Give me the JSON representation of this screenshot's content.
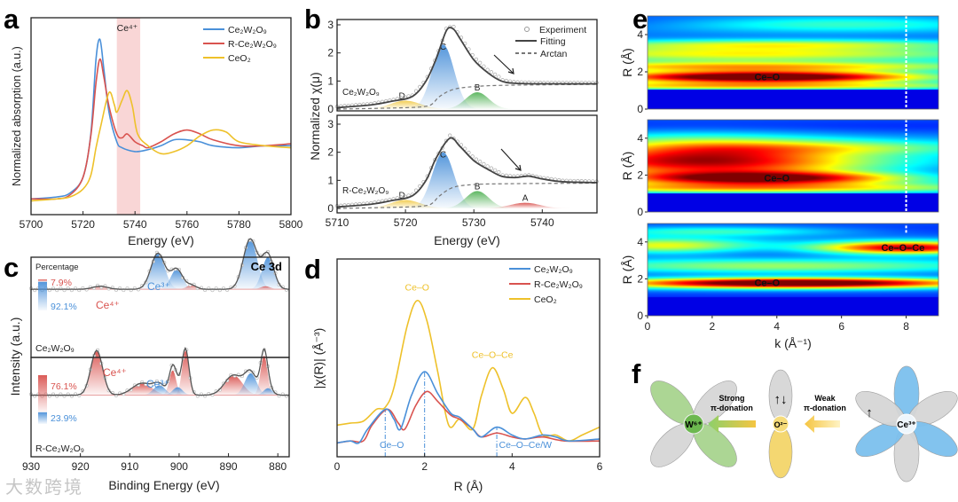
{
  "watermark": "大数跨境",
  "colors": {
    "blue": "#4a90d9",
    "red": "#d9534f",
    "yellow": "#eec12a",
    "green": "#4caf50",
    "gray": "#555555",
    "pink_band": "#f9d6d6"
  },
  "chart_data": [
    {
      "panel": "a",
      "type": "line",
      "xlabel": "Energy (eV)",
      "ylabel": "Normalized absorption (a.u.)",
      "xlim": [
        5700,
        5800
      ],
      "ylim": [
        0,
        1
      ],
      "xticks": [
        5700,
        5720,
        5740,
        5760,
        5780,
        5800
      ],
      "shaded_region": {
        "label": "Ce⁴⁺",
        "x": [
          5733,
          5742
        ]
      },
      "legend_position": "top-right",
      "series": [
        {
          "name": "Ce₂W₂O₉",
          "color": "#4a90d9",
          "x": [
            5700,
            5710,
            5715,
            5720,
            5723,
            5725,
            5726.5,
            5728,
            5730,
            5733,
            5735,
            5740,
            5745,
            5750,
            5755,
            5760,
            5765,
            5770,
            5780,
            5790,
            5800
          ],
          "y": [
            0.08,
            0.09,
            0.11,
            0.19,
            0.41,
            0.79,
            0.89,
            0.74,
            0.52,
            0.37,
            0.34,
            0.32,
            0.33,
            0.35,
            0.38,
            0.38,
            0.37,
            0.35,
            0.34,
            0.35,
            0.35
          ]
        },
        {
          "name": "R-Ce₂W₂O₉",
          "color": "#d9534f",
          "x": [
            5700,
            5710,
            5715,
            5720,
            5723,
            5725,
            5726.5,
            5728,
            5730,
            5733,
            5735,
            5737,
            5740,
            5743,
            5745,
            5750,
            5755,
            5760,
            5765,
            5770,
            5780,
            5790,
            5800
          ],
          "y": [
            0.08,
            0.08,
            0.1,
            0.19,
            0.4,
            0.67,
            0.79,
            0.7,
            0.55,
            0.41,
            0.39,
            0.41,
            0.37,
            0.35,
            0.34,
            0.37,
            0.41,
            0.43,
            0.41,
            0.38,
            0.35,
            0.35,
            0.36
          ]
        },
        {
          "name": "CeO₂",
          "color": "#eec12a",
          "x": [
            5700,
            5710,
            5715,
            5720,
            5723,
            5725,
            5727,
            5730,
            5732,
            5733,
            5735,
            5737,
            5739,
            5741,
            5745,
            5750,
            5755,
            5760,
            5765,
            5770,
            5775,
            5780,
            5790,
            5800
          ],
          "y": [
            0.07,
            0.08,
            0.09,
            0.13,
            0.2,
            0.34,
            0.46,
            0.62,
            0.56,
            0.52,
            0.58,
            0.63,
            0.55,
            0.41,
            0.35,
            0.31,
            0.32,
            0.35,
            0.4,
            0.43,
            0.42,
            0.37,
            0.35,
            0.34
          ]
        }
      ]
    },
    {
      "panel": "b",
      "type": "line",
      "xlabel": "Energy (eV)",
      "ylabel": "Normalized χ(μ)",
      "xlim": [
        5710,
        5748
      ],
      "ylim": [
        -0.06,
        3.2
      ],
      "xticks": [
        5710,
        5720,
        5730,
        5740
      ],
      "yticks": [
        0,
        1,
        2,
        3
      ],
      "legend": [
        "Experiment",
        "Fitting",
        "Arctan"
      ],
      "legend_position": "top-right",
      "subplots": [
        {
          "sample": "Ce₂W₂O₉",
          "fit": {
            "x": [
              5710,
              5715,
              5718,
              5721,
              5723,
              5724.5,
              5726,
              5727,
              5728,
              5730,
              5732,
              5734,
              5736,
              5740,
              5748
            ],
            "y": [
              0.05,
              0.15,
              0.28,
              0.45,
              1.0,
              1.8,
              2.8,
              2.85,
              2.5,
              1.75,
              1.3,
              1.0,
              0.92,
              0.9,
              0.9
            ]
          },
          "arctan": {
            "x": [
              5710,
              5720,
              5723,
              5724,
              5725,
              5727,
              5730,
              5735,
              5748
            ],
            "y": [
              0,
              0.05,
              0.1,
              0.2,
              0.45,
              0.7,
              0.8,
              0.85,
              0.88
            ]
          },
          "peaks": [
            {
              "label": "D",
              "center": 5720,
              "height": 0.3,
              "sigma": 2.2,
              "color": "#eec12a"
            },
            {
              "label": "C",
              "center": 5725.5,
              "height": 2.3,
              "sigma": 1.6,
              "color": "#4a90d9"
            },
            {
              "label": "B",
              "center": 5730.5,
              "height": 0.6,
              "sigma": 1.7,
              "color": "#4caf50"
            }
          ]
        },
        {
          "sample": "R-Ce₂W₂O₉",
          "fit": {
            "x": [
              5710,
              5715,
              5718,
              5721,
              5723,
              5724.5,
              5726.5,
              5728,
              5730,
              5732,
              5734,
              5736,
              5738,
              5740,
              5743,
              5748
            ],
            "y": [
              0.05,
              0.15,
              0.28,
              0.45,
              1.0,
              1.8,
              2.5,
              2.2,
              1.7,
              1.4,
              1.15,
              1.1,
              1.15,
              1.05,
              0.95,
              0.92
            ]
          },
          "arctan": {
            "x": [
              5710,
              5720,
              5723,
              5724,
              5725,
              5727,
              5730,
              5735,
              5748
            ],
            "y": [
              0,
              0.05,
              0.1,
              0.2,
              0.45,
              0.75,
              0.85,
              0.88,
              0.9
            ]
          },
          "peaks": [
            {
              "label": "D",
              "center": 5720,
              "height": 0.3,
              "sigma": 2.2,
              "color": "#eec12a"
            },
            {
              "label": "C",
              "center": 5725.5,
              "height": 2.0,
              "sigma": 1.6,
              "color": "#4a90d9"
            },
            {
              "label": "B",
              "center": 5730.5,
              "height": 0.62,
              "sigma": 1.7,
              "color": "#4caf50"
            },
            {
              "label": "A",
              "center": 5737.5,
              "height": 0.2,
              "sigma": 2.2,
              "color": "#d9534f"
            }
          ]
        }
      ]
    },
    {
      "panel": "c",
      "type": "area",
      "title": "Ce 3d",
      "xlabel": "Binding Energy (eV)",
      "ylabel": "Intensity (a.u.)",
      "xlim": [
        930,
        877.7
      ],
      "xticks": [
        930,
        920,
        910,
        900,
        890,
        880
      ],
      "percentage_label": "Percentage",
      "subplots": [
        {
          "sample": "Ce₂W₂O₉",
          "ce4_pct": "7.9%",
          "ce3_pct": "92.1%",
          "ce4_fraction": 0.079,
          "labels": {
            "ce3": "Ce³⁺",
            "ce4": "Ce⁴⁺"
          },
          "background": {
            "x": [
              930,
              920,
              910,
              905,
              900,
              895,
              890,
              885,
              880,
              877.7
            ],
            "y": [
              0.68,
              0.62,
              0.58,
              0.53,
              0.42,
              0.3,
              0.25,
              0.2,
              0.08,
              0.05
            ]
          },
          "peaks": [
            {
              "type": "Ce3+",
              "center": 904.3,
              "height": 0.36,
              "sigma": 1.4
            },
            {
              "type": "Ce3+",
              "center": 900.5,
              "height": 0.2,
              "sigma": 1.2
            },
            {
              "type": "Ce3+",
              "center": 885.6,
              "height": 0.5,
              "sigma": 1.4
            },
            {
              "type": "Ce3+",
              "center": 882,
              "height": 0.32,
              "sigma": 1.2
            },
            {
              "type": "Ce4+",
              "center": 916,
              "height": 0.03,
              "sigma": 1.5
            },
            {
              "type": "Ce4+",
              "center": 897.5,
              "height": 0.04,
              "sigma": 1.0
            },
            {
              "type": "Ce4+",
              "center": 882.5,
              "height": 0.03,
              "sigma": 1.0
            }
          ]
        },
        {
          "sample": "R-Ce₂W₂O₉",
          "ce4_pct": "76.1%",
          "ce3_pct": "23.9%",
          "ce4_fraction": 0.761,
          "labels": {
            "ce3": "Ce³⁺",
            "ce4": "Ce⁴⁺"
          },
          "background": {
            "x": [
              930,
              920,
              910,
              905,
              900,
              895,
              890,
              885,
              880,
              877.7
            ],
            "y": [
              0.62,
              0.58,
              0.52,
              0.47,
              0.38,
              0.3,
              0.22,
              0.14,
              0.05,
              0.03
            ]
          },
          "peaks": [
            {
              "type": "Ce4+",
              "center": 916.7,
              "height": 0.45,
              "sigma": 1.2
            },
            {
              "type": "Ce4+",
              "center": 907.5,
              "height": 0.12,
              "sigma": 2.0
            },
            {
              "type": "Ce4+",
              "center": 901.3,
              "height": 0.25,
              "sigma": 0.7
            },
            {
              "type": "Ce4+",
              "center": 898.7,
              "height": 0.45,
              "sigma": 0.7
            },
            {
              "type": "Ce4+",
              "center": 889,
              "height": 0.2,
              "sigma": 1.8
            },
            {
              "type": "Ce4+",
              "center": 882.8,
              "height": 0.4,
              "sigma": 0.7
            },
            {
              "type": "Ce3+",
              "center": 904,
              "height": 0.1,
              "sigma": 1.2
            },
            {
              "type": "Ce3+",
              "center": 900.3,
              "height": 0.08,
              "sigma": 1.0
            },
            {
              "type": "Ce3+",
              "center": 885.5,
              "height": 0.22,
              "sigma": 1.2
            },
            {
              "type": "Ce3+",
              "center": 882,
              "height": 0.07,
              "sigma": 0.9
            }
          ]
        }
      ]
    },
    {
      "panel": "d",
      "type": "line",
      "xlabel": "R (Å)",
      "ylabel": "|χ(R)| (Å⁻³)",
      "xlim": [
        0,
        6
      ],
      "ylim": [
        0,
        1
      ],
      "xticks": [
        0,
        2,
        4,
        6
      ],
      "legend_position": "top-right",
      "annotations": [
        {
          "text": "Ce–O",
          "x": 1.83,
          "y": 0.84,
          "color": "#eec12a"
        },
        {
          "text": "Ce–O–Ce",
          "x": 3.55,
          "y": 0.5,
          "color": "#eec12a"
        },
        {
          "text": "Ce–O",
          "x": 1.25,
          "y": 0.045,
          "color": "#4a90d9"
        },
        {
          "text": "Ce–O–Ce/W",
          "x": 3.7,
          "y": 0.045,
          "color": "#4a90d9"
        }
      ],
      "markers": [
        1.1,
        2.0,
        3.65
      ],
      "series": [
        {
          "name": "Ce₂W₂O₉",
          "color": "#4a90d9",
          "x": [
            0,
            0.3,
            0.5,
            0.7,
            1.1,
            1.3,
            1.45,
            1.7,
            2.0,
            2.3,
            2.6,
            2.8,
            3.1,
            3.3,
            3.65,
            4.0,
            4.3,
            4.7,
            5.0,
            5.3,
            6.0
          ],
          "y": [
            0.07,
            0.08,
            0.07,
            0.14,
            0.24,
            0.19,
            0.14,
            0.31,
            0.43,
            0.32,
            0.22,
            0.2,
            0.14,
            0.1,
            0.15,
            0.11,
            0.09,
            0.11,
            0.1,
            0.08,
            0.09
          ]
        },
        {
          "name": "R-Ce₂W₂O₉",
          "color": "#d9534f",
          "x": [
            0,
            0.3,
            0.6,
            0.8,
            1.15,
            1.4,
            1.55,
            1.8,
            2.05,
            2.3,
            2.6,
            2.8,
            3.1,
            3.3,
            3.65,
            4.0,
            4.3,
            4.7,
            5.2,
            6.0
          ],
          "y": [
            0.07,
            0.08,
            0.08,
            0.16,
            0.24,
            0.17,
            0.14,
            0.26,
            0.33,
            0.28,
            0.21,
            0.19,
            0.14,
            0.1,
            0.12,
            0.1,
            0.09,
            0.1,
            0.08,
            0.08
          ]
        },
        {
          "name": "CeO₂",
          "color": "#eec12a",
          "x": [
            0,
            0.3,
            0.6,
            0.9,
            1.1,
            1.3,
            1.6,
            1.83,
            2.05,
            2.3,
            2.55,
            2.8,
            3.1,
            3.3,
            3.55,
            3.8,
            4.0,
            4.3,
            4.5,
            4.7,
            5.0,
            5.3,
            5.6,
            6.0
          ],
          "y": [
            0.16,
            0.17,
            0.18,
            0.24,
            0.25,
            0.35,
            0.66,
            0.79,
            0.69,
            0.43,
            0.16,
            0.19,
            0.14,
            0.31,
            0.45,
            0.34,
            0.22,
            0.3,
            0.22,
            0.11,
            0.11,
            0.08,
            0.11,
            0.15
          ]
        }
      ]
    },
    {
      "panel": "e",
      "type": "heatmap",
      "xlabel": "k (Å⁻¹)",
      "ylabel": "R (Å)",
      "xlim": [
        0,
        9
      ],
      "ylim": [
        0,
        5
      ],
      "xticks": [
        0,
        2,
        4,
        6,
        8
      ],
      "yticks": [
        0,
        2,
        4
      ],
      "dashed_k": 8,
      "maps": [
        {
          "annotations": [
            {
              "text": "Ce–O",
              "k": 3.7,
              "R": 1.75
            }
          ],
          "bands": [
            {
              "R": 1.75,
              "amp": 0.95,
              "sR": 0.22,
              "kc": 3.5,
              "kw": 3.5
            },
            {
              "R": 1.25,
              "amp": 0.45,
              "sR": 0.15,
              "kc": 3,
              "kw": 6
            },
            {
              "R": 2.3,
              "amp": 0.5,
              "sR": 0.2,
              "kc": 3,
              "kw": 6
            },
            {
              "R": 3.0,
              "amp": 0.4,
              "sR": 0.3,
              "kc": 3,
              "kw": 6
            },
            {
              "R": 3.5,
              "amp": 0.35,
              "sR": 0.2,
              "kc": 4,
              "kw": 5
            },
            {
              "R": 4.6,
              "amp": 0.25,
              "sR": 0.3,
              "kc": 6,
              "kw": 4
            }
          ]
        },
        {
          "annotations": [
            {
              "text": "Ce–O",
              "k": 4.0,
              "R": 1.85
            }
          ],
          "bands": [
            {
              "R": 1.85,
              "amp": 0.72,
              "sR": 0.25,
              "kc": 3.5,
              "kw": 3
            },
            {
              "R": 1.3,
              "amp": 0.45,
              "sR": 0.2,
              "kc": 3,
              "kw": 6
            },
            {
              "R": 2.5,
              "amp": 0.5,
              "sR": 0.5,
              "kc": 2,
              "kw": 4
            },
            {
              "R": 3.3,
              "amp": 0.45,
              "sR": 0.6,
              "kc": 1.5,
              "kw": 3
            },
            {
              "R": 3.5,
              "amp": 0.3,
              "sR": 0.3,
              "kc": 6,
              "kw": 4
            }
          ]
        },
        {
          "annotations": [
            {
              "text": "Ce–O",
              "k": 3.7,
              "R": 1.8
            },
            {
              "text": "Ce–O–Ce",
              "k": 7.9,
              "R": 3.7
            }
          ],
          "bands": [
            {
              "R": 1.8,
              "amp": 0.95,
              "sR": 0.2,
              "kc": 4.5,
              "kw": 4
            },
            {
              "R": 3.7,
              "amp": 0.75,
              "sR": 0.25,
              "kc": 8,
              "kw": 2
            },
            {
              "R": 3.8,
              "amp": 0.4,
              "sR": 0.3,
              "kc": 0.5,
              "kw": 2
            },
            {
              "R": 2.7,
              "amp": 0.3,
              "sR": 0.3,
              "kc": 4,
              "kw": 5
            },
            {
              "R": 4.6,
              "amp": 0.25,
              "sR": 0.2,
              "kc": 2,
              "kw": 3
            }
          ]
        }
      ]
    }
  ],
  "diagram_f": {
    "w_label": "W⁶⁺",
    "o_label": "O²⁻",
    "ce_label": "Ce³⁺",
    "strong_line1": "Strong",
    "strong_line2": "π-donation",
    "weak_line1": "Weak",
    "weak_line2": "π-donation",
    "o_spin": "↑↓",
    "ce_spin": "↑"
  },
  "panel_labels": [
    "a",
    "b",
    "c",
    "d",
    "e",
    "f"
  ]
}
